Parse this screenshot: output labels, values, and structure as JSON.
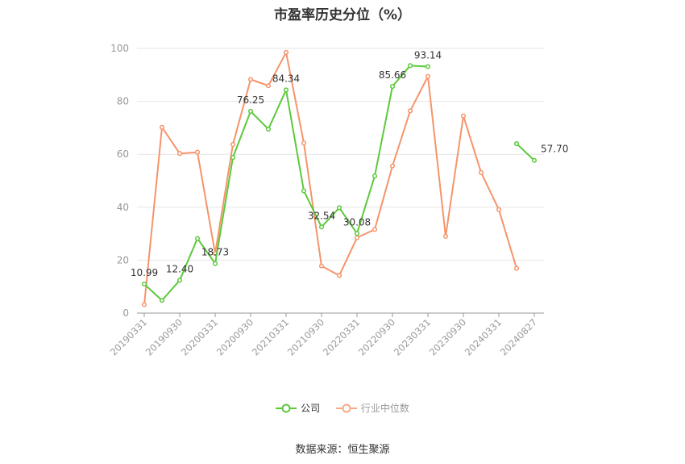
{
  "chart_data": {
    "type": "line",
    "title": "市盈率历史分位（%）",
    "x": [
      "20190331",
      "20190630",
      "20190930",
      "20191231",
      "20200331",
      "20200630",
      "20200930",
      "20201231",
      "20210331",
      "20210630",
      "20210930",
      "20211231",
      "20220331",
      "20220630",
      "20220930",
      "20221231",
      "20230331",
      "20230630",
      "20230930",
      "20231231",
      "20240331",
      "20240630",
      "20240827"
    ],
    "tick_labels": [
      "20190331",
      "20190930",
      "20200331",
      "20200930",
      "20210331",
      "20210930",
      "20220331",
      "20220930",
      "20230331",
      "20230930",
      "20240331",
      "20240827"
    ],
    "ylim": [
      0,
      100
    ],
    "yticks": [
      0,
      20,
      40,
      60,
      80,
      100
    ],
    "grid": true,
    "legend_position": "bottom",
    "series": [
      {
        "name": "公司",
        "color": "#5cc93b",
        "values": [
          10.99,
          4.8,
          12.4,
          28.2,
          18.73,
          58.8,
          76.25,
          69.5,
          84.34,
          46.2,
          32.54,
          39.8,
          30.08,
          51.8,
          85.66,
          93.5,
          93.14,
          null,
          null,
          null,
          null,
          64.0,
          57.7
        ],
        "labels": {
          "0": "10.99",
          "2": "12.40",
          "4": "18.73",
          "6": "76.25",
          "8": "84.34",
          "10": "32.54",
          "12": "30.08",
          "14": "85.66",
          "16": "93.14",
          "22": "57.70"
        }
      },
      {
        "name": "行业中位数",
        "color": "#f5946b",
        "values": [
          3.2,
          70.2,
          60.3,
          60.8,
          22.5,
          63.7,
          88.3,
          85.9,
          98.5,
          64.3,
          17.8,
          14.2,
          28.5,
          31.6,
          55.6,
          76.4,
          89.4,
          29.0,
          74.5,
          53.1,
          39.1,
          16.9,
          null
        ]
      }
    ]
  },
  "legend": {
    "items": [
      {
        "label": "公司",
        "color": "#5cc93b"
      },
      {
        "label": "行业中位数",
        "color": "#f5a987"
      }
    ]
  },
  "footer": {
    "source": "数据来源：恒生聚源"
  }
}
